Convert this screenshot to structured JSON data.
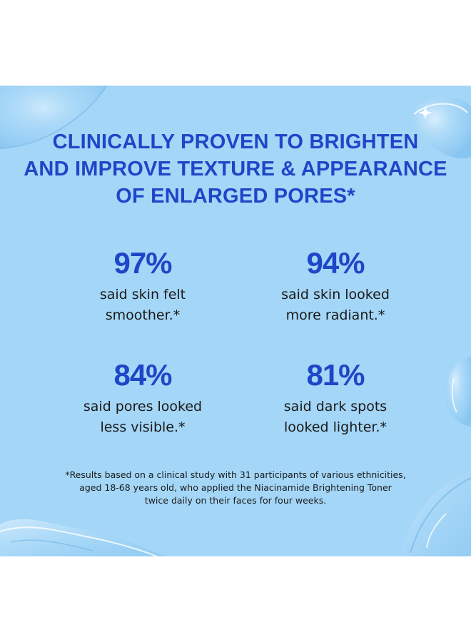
{
  "colors": {
    "background": "#a4d6f7",
    "accent": "#1e46c8",
    "body_text": "#1a1a1a"
  },
  "headline": {
    "lines": [
      "CLINICALLY PROVEN TO BRIGHTEN",
      "AND IMPROVE TEXTURE & APPEARANCE",
      "OF ENLARGED PORES*"
    ]
  },
  "stats": [
    {
      "value": "97%",
      "caption_lines": [
        "said skin felt",
        "smoother.*"
      ]
    },
    {
      "value": "94%",
      "caption_lines": [
        "said skin looked",
        "more radiant.*"
      ]
    },
    {
      "value": "84%",
      "caption_lines": [
        "said pores looked",
        "less visible.*"
      ]
    },
    {
      "value": "81%",
      "caption_lines": [
        "said dark spots",
        "looked lighter.*"
      ]
    }
  ],
  "footnote": {
    "lines": [
      "*Results based on a clinical study with 31 participants of various ethnicities,",
      "aged 18-68 years old, who applied the Niacinamide Brightening Toner",
      "twice daily on their faces for four weeks."
    ]
  },
  "decorations": [
    "water-droplet-top-left",
    "water-droplet-top-right",
    "water-droplet-right",
    "water-droplet-bottom-right",
    "water-splash-bottom-left"
  ]
}
